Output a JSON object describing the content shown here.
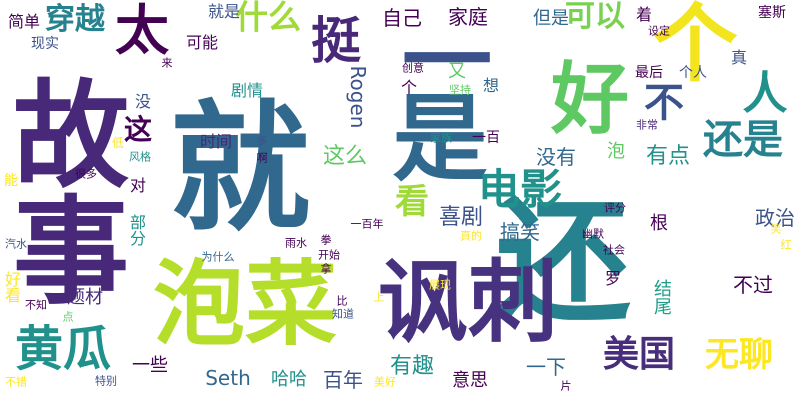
{
  "colors": {
    "background": "#ffffff",
    "palette": [
      "#440154",
      "#3b528b",
      "#21918c",
      "#5ec962",
      "#fde725"
    ]
  },
  "words": [
    {
      "text": "就",
      "color": "#31688e"
    },
    {
      "text": "还",
      "color": "#26828e"
    },
    {
      "text": "泡菜",
      "color": "#b5de2b"
    },
    {
      "text": "讽刺",
      "color": "#46327e"
    },
    {
      "text": "故事",
      "color": "#482878"
    },
    {
      "text": "好",
      "color": "#5ec962"
    },
    {
      "text": "一",
      "color": "#3b528b"
    },
    {
      "text": "个",
      "color": "#f2e51d"
    },
    {
      "text": "太",
      "color": "#440154"
    },
    {
      "text": "挺",
      "color": "#482878"
    },
    {
      "text": "什么",
      "color": "#a0da39"
    },
    {
      "text": "穿越",
      "color": "#26828e"
    },
    {
      "text": "是",
      "color": "#31688e"
    },
    {
      "text": "人",
      "color": "#21918c"
    },
    {
      "text": "不",
      "color": "#3b528b"
    },
    {
      "text": "还是",
      "color": "#26828e"
    },
    {
      "text": "电影",
      "color": "#21918c"
    },
    {
      "text": "看",
      "color": "#a0da39"
    },
    {
      "text": "黄瓜",
      "color": "#21918c"
    },
    {
      "text": "美国",
      "color": "#472d7b"
    },
    {
      "text": "无聊",
      "color": "#fde725"
    },
    {
      "text": "可以",
      "color": "#7ad151"
    },
    {
      "text": "这",
      "color": "#440154"
    },
    {
      "text": "喜剧",
      "color": "#3b528b"
    },
    {
      "text": "这么",
      "color": "#5ec962"
    },
    {
      "text": "有点",
      "color": "#21918c"
    },
    {
      "text": "没有",
      "color": "#31688e"
    },
    {
      "text": "有趣",
      "color": "#21918c"
    },
    {
      "text": "百年",
      "color": "#3b528b"
    },
    {
      "text": "一些",
      "color": "#440154"
    },
    {
      "text": "Seth",
      "color": "#31688e"
    },
    {
      "text": "Rogen",
      "color": "#3b528b"
    },
    {
      "text": "哈哈",
      "color": "#21918c"
    },
    {
      "text": "意思",
      "color": "#440154"
    },
    {
      "text": "一下",
      "color": "#31688e"
    },
    {
      "text": "不过",
      "color": "#440154"
    },
    {
      "text": "搞笑",
      "color": "#31688e"
    },
    {
      "text": "政治",
      "color": "#3b528b"
    },
    {
      "text": "结尾",
      "color": "#1f9e89"
    },
    {
      "text": "题材",
      "color": "#482878"
    },
    {
      "text": "家庭",
      "color": "#440154"
    },
    {
      "text": "自己",
      "color": "#440154"
    },
    {
      "text": "就是",
      "color": "#3b528b"
    },
    {
      "text": "但是",
      "color": "#31688e"
    },
    {
      "text": "着",
      "color": "#440154"
    },
    {
      "text": "简单",
      "color": "#440154"
    },
    {
      "text": "现实",
      "color": "#3b528b"
    },
    {
      "text": "可能",
      "color": "#440154"
    },
    {
      "text": "剧情",
      "color": "#21918c"
    },
    {
      "text": "时间",
      "color": "#482878"
    },
    {
      "text": "对",
      "color": "#440154"
    },
    {
      "text": "部分",
      "color": "#21918c"
    },
    {
      "text": "根",
      "color": "#440154"
    },
    {
      "text": "罗",
      "color": "#440154"
    },
    {
      "text": "又",
      "color": "#5ec962"
    },
    {
      "text": "想",
      "color": "#31688e"
    },
    {
      "text": "个",
      "color": "#440154"
    },
    {
      "text": "泡",
      "color": "#5ec962"
    },
    {
      "text": "一百",
      "color": "#440154"
    },
    {
      "text": "最后",
      "color": "#440154"
    },
    {
      "text": "个人",
      "color": "#3b528b"
    },
    {
      "text": "塞斯",
      "color": "#440154"
    },
    {
      "text": "真",
      "color": "#3b528b"
    },
    {
      "text": "没",
      "color": "#3b528b"
    },
    {
      "text": "能",
      "color": "#fde725"
    },
    {
      "text": "好看",
      "color": "#fde725"
    },
    {
      "text": "拳",
      "color": "#440154"
    },
    {
      "text": "一百年",
      "color": "#440154"
    },
    {
      "text": "雨水",
      "color": "#440154"
    },
    {
      "text": "开始",
      "color": "#440154"
    },
    {
      "text": "为什么",
      "color": "#31688e"
    },
    {
      "text": "比",
      "color": "#440154"
    },
    {
      "text": "知道",
      "color": "#3b528b"
    },
    {
      "text": "上",
      "color": "#fde725"
    },
    {
      "text": "家族",
      "color": "#21918c"
    },
    {
      "text": "非常",
      "color": "#482878"
    },
    {
      "text": "啊",
      "color": "#440154"
    },
    {
      "text": "多",
      "color": "#3b528b"
    },
    {
      "text": "风格",
      "color": "#21918c"
    },
    {
      "text": "很多",
      "color": "#440154"
    },
    {
      "text": "低",
      "color": "#fde725"
    },
    {
      "text": "来",
      "color": "#440154"
    },
    {
      "text": "创意",
      "color": "#440154"
    },
    {
      "text": "坚持",
      "color": "#5ec962"
    },
    {
      "text": "幽默",
      "color": "#440154"
    },
    {
      "text": "评分",
      "color": "#440154"
    },
    {
      "text": "社会",
      "color": "#440154"
    },
    {
      "text": "真的",
      "color": "#fde725"
    },
    {
      "text": "笑",
      "color": "#fde725"
    },
    {
      "text": "红",
      "color": "#fde725"
    },
    {
      "text": "汽水",
      "color": "#3b528b"
    },
    {
      "text": "不知",
      "color": "#440154"
    },
    {
      "text": "点",
      "color": "#5ec962"
    },
    {
      "text": "不错",
      "color": "#fde725"
    },
    {
      "text": "特别",
      "color": "#3b528b"
    },
    {
      "text": "片",
      "color": "#440154"
    },
    {
      "text": "美好",
      "color": "#fde725"
    },
    {
      "text": "拿",
      "color": "#440154"
    },
    {
      "text": "展现",
      "color": "#fde725"
    },
    {
      "text": "设定",
      "color": "#440154"
    }
  ]
}
